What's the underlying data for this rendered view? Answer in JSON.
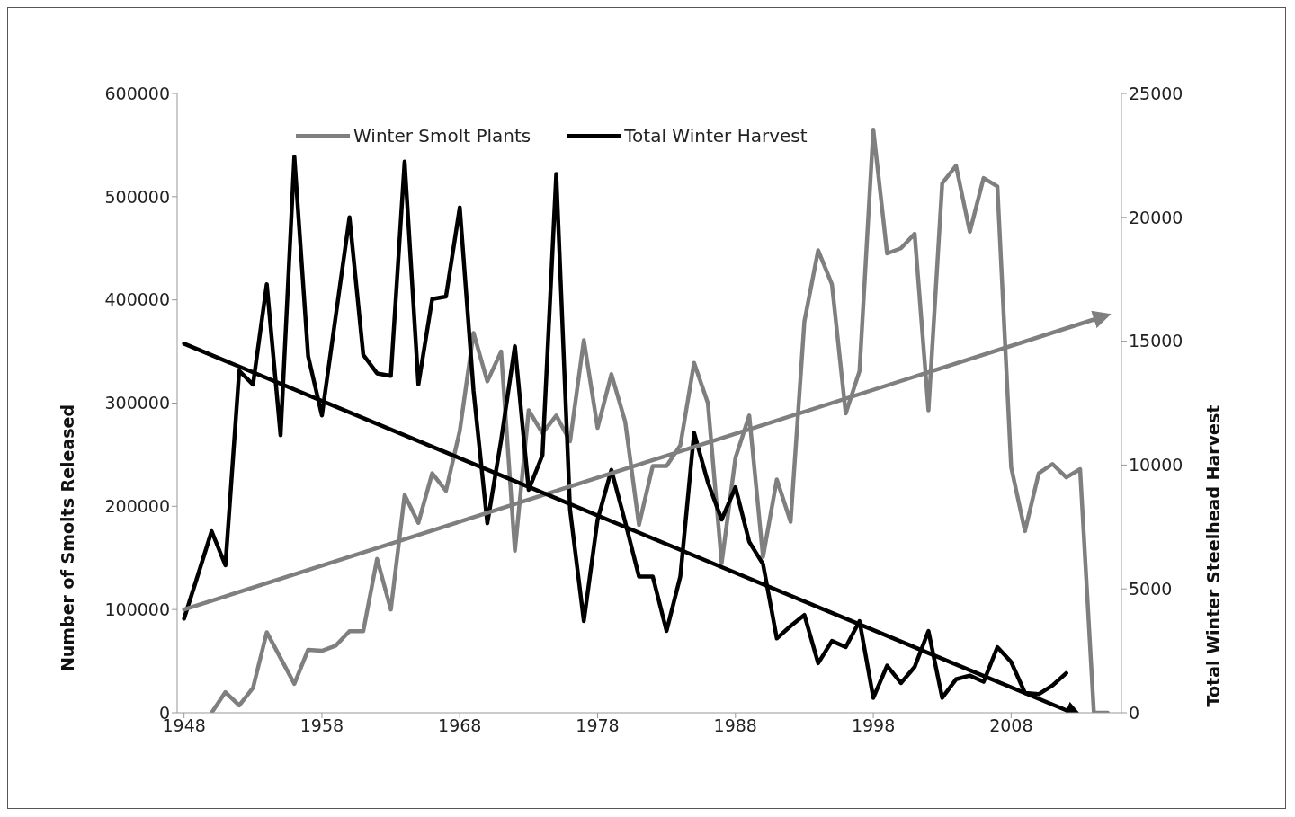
{
  "chart_data": {
    "type": "line",
    "xlabel": null,
    "ylabel": "Number of Smolts Released",
    "y2label": "Total Winter Steelhead Harvest",
    "xlim": [
      1947.5,
      2016
    ],
    "xticks": [
      1948,
      1958,
      1968,
      1978,
      1988,
      1998,
      2008
    ],
    "ylim": [
      0,
      600000
    ],
    "yticks": [
      0,
      100000,
      200000,
      300000,
      400000,
      500000,
      600000
    ],
    "y2lim": [
      0,
      25000
    ],
    "y2ticks": [
      0,
      5000,
      10000,
      15000,
      20000,
      25000
    ],
    "legend": "top",
    "grid": false,
    "marker": "none",
    "line_style": "solid",
    "series": [
      {
        "name": "Winter Smolt Plants",
        "color": "#7f7f7f",
        "x": [
          1950,
          1951,
          1952,
          1953,
          1954,
          1955,
          1956,
          1957,
          1958,
          1959,
          1960,
          1961,
          1962,
          1963,
          1964,
          1965,
          1966,
          1967,
          1968,
          1969,
          1970,
          1971,
          1972,
          1973,
          1974,
          1975,
          1976,
          1977,
          1978,
          1979,
          1980,
          1981,
          1982,
          1983,
          1984,
          1985,
          1986,
          1987,
          1988,
          1989,
          1990,
          1991,
          1992,
          1993,
          1994,
          1995,
          1996,
          1997,
          1998,
          1999,
          2000,
          2001,
          2002,
          2003,
          2004,
          2005,
          2006,
          2007,
          2008,
          2009,
          2010,
          2011,
          2012,
          2013,
          2014,
          2015
        ],
        "values": [
          0,
          20000,
          7000,
          24000,
          78000,
          53000,
          28000,
          61000,
          60000,
          65000,
          79000,
          79000,
          149000,
          100000,
          211000,
          184000,
          232000,
          215000,
          273000,
          368000,
          321000,
          350000,
          157000,
          293000,
          271000,
          288000,
          263000,
          361000,
          276000,
          328000,
          282000,
          182000,
          239000,
          239000,
          259000,
          339000,
          300000,
          145000,
          247000,
          288000,
          151000,
          226000,
          185000,
          379000,
          448000,
          415000,
          290000,
          331000,
          565000,
          445000,
          450000,
          464000,
          293000,
          513000,
          530000,
          466000,
          518000,
          510000,
          238000,
          176000,
          232000,
          241000,
          228000,
          236000,
          0,
          0
        ]
      },
      {
        "name": "Total Winter Harvest",
        "color": "#000000",
        "axis": "y2",
        "x": [
          1948,
          1949,
          1950,
          1951,
          1952,
          1953,
          1954,
          1955,
          1956,
          1957,
          1958,
          1959,
          1960,
          1961,
          1962,
          1963,
          1964,
          1965,
          1966,
          1967,
          1968,
          1969,
          1970,
          1971,
          1972,
          1973,
          1974,
          1975,
          1976,
          1977,
          1978,
          1979,
          1980,
          1981,
          1982,
          1983,
          1984,
          1985,
          1986,
          1987,
          1988,
          1989,
          1990,
          1991,
          1992,
          1993,
          1994,
          1995,
          1996,
          1997,
          1998,
          1999,
          2000,
          2001,
          2002,
          2003,
          2004,
          2005,
          2006,
          2007,
          2008,
          2009,
          2010,
          2011,
          2012
        ],
        "values": [
          3800,
          5550,
          7330,
          5950,
          13800,
          13250,
          17300,
          11200,
          22450,
          14400,
          12000,
          16000,
          20000,
          14450,
          13700,
          13600,
          22250,
          13250,
          16700,
          16800,
          20400,
          13000,
          7650,
          11000,
          14800,
          9000,
          10400,
          21750,
          8200,
          3700,
          7800,
          9800,
          7700,
          5500,
          5500,
          3300,
          5500,
          11300,
          9300,
          7800,
          9100,
          6900,
          6000,
          3000,
          3500,
          3950,
          2000,
          2900,
          2650,
          3700,
          600,
          1900,
          1200,
          1850,
          3300,
          600,
          1350,
          1500,
          1250,
          2650,
          2050,
          800,
          750,
          1100,
          1600
        ]
      },
      {
        "type": "line",
        "color": "#7f7f7f",
        "x": [
          1948,
          2014
        ],
        "values": [
          100000,
          381000
        ]
      },
      {
        "type": "line",
        "color": "#000000",
        "axis": "y2",
        "x": [
          1948,
          2012
        ],
        "values": [
          14900,
          100
        ]
      }
    ]
  }
}
